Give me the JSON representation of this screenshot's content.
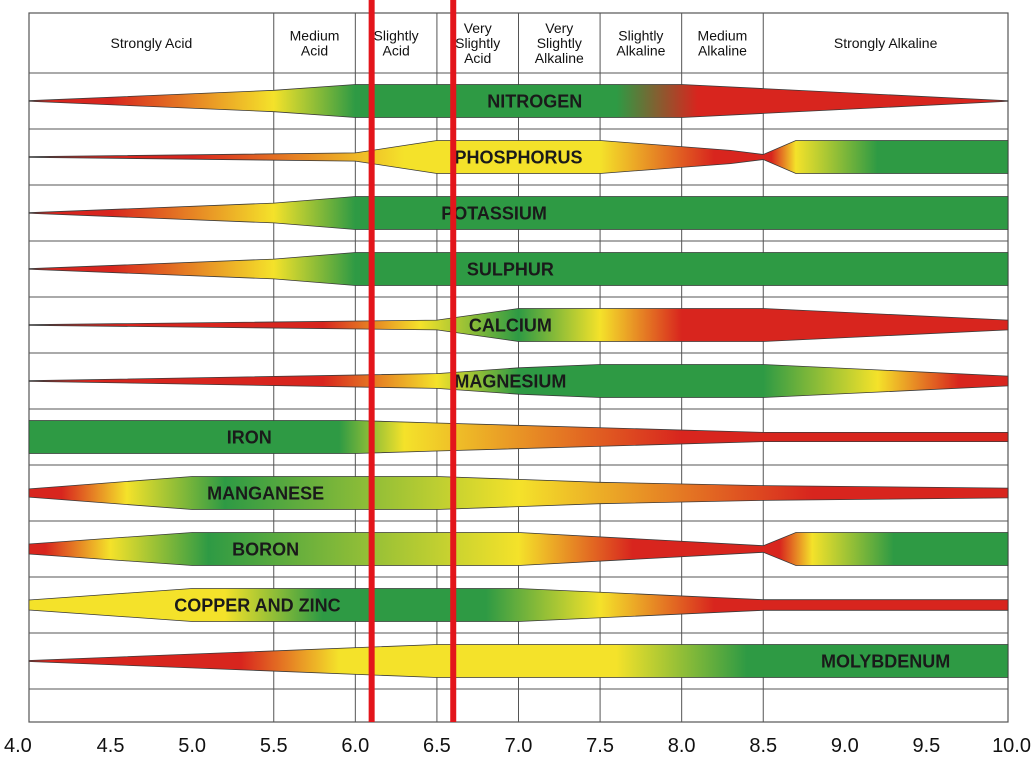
{
  "chart_data": {
    "type": "band",
    "x_ticks": [
      "4.0",
      "4.5",
      "5.0",
      "5.5",
      "6.0",
      "6.5",
      "7.0",
      "7.5",
      "8.0",
      "8.5",
      "9.0",
      "9.5",
      "10.0"
    ],
    "xlim": [
      4.0,
      10.0
    ],
    "header_categories": [
      {
        "label": [
          "Strongly Acid"
        ],
        "range": [
          4.0,
          5.5
        ]
      },
      {
        "label": [
          "Medium",
          "Acid"
        ],
        "range": [
          5.5,
          6.0
        ]
      },
      {
        "label": [
          "Slightly",
          "Acid"
        ],
        "range": [
          6.0,
          6.5
        ]
      },
      {
        "label": [
          "Very",
          "Slightly",
          "Acid"
        ],
        "range": [
          6.5,
          7.0
        ]
      },
      {
        "label": [
          "Very",
          "Slightly",
          "Alkaline"
        ],
        "range": [
          7.0,
          7.5
        ]
      },
      {
        "label": [
          "Slightly",
          "Alkaline"
        ],
        "range": [
          7.5,
          8.0
        ]
      },
      {
        "label": [
          "Medium",
          "Alkaline"
        ],
        "range": [
          8.0,
          8.5
        ]
      },
      {
        "label": [
          "Strongly Alkaline"
        ],
        "range": [
          8.5,
          10.0
        ]
      }
    ],
    "highlight_lines": [
      6.1,
      6.6
    ],
    "colors": {
      "good": "#2e9a44",
      "moderate": "#f4e22a",
      "poor": "#d8251e",
      "highlight": "#e3151b",
      "grid": "#555555"
    },
    "availability_scale": "relative band thickness 0–1",
    "series": [
      {
        "name": "NITROGEN",
        "label_x": 7.1,
        "profile": [
          [
            4.0,
            0.02
          ],
          [
            5.5,
            0.65
          ],
          [
            6.0,
            1
          ],
          [
            8.0,
            1
          ],
          [
            8.5,
            0.75
          ],
          [
            10.0,
            0.02
          ]
        ],
        "colors": [
          [
            4.5,
            "poor"
          ],
          [
            5.5,
            "moderate"
          ],
          [
            6.0,
            "good"
          ],
          [
            7.6,
            "good"
          ],
          [
            8.1,
            "poor"
          ]
        ]
      },
      {
        "name": "PHOSPHORUS",
        "label_x": 7.0,
        "profile": [
          [
            4.0,
            0.02
          ],
          [
            6.0,
            0.25
          ],
          [
            6.5,
            1
          ],
          [
            7.5,
            1
          ],
          [
            8.3,
            0.4
          ],
          [
            8.5,
            0.15
          ],
          [
            8.7,
            1
          ],
          [
            10.0,
            1
          ]
        ],
        "colors": [
          [
            5.0,
            "poor"
          ],
          [
            6.3,
            "moderate"
          ],
          [
            7.5,
            "moderate"
          ],
          [
            8.2,
            "poor"
          ],
          [
            8.55,
            "poor"
          ],
          [
            8.7,
            "moderate"
          ],
          [
            9.2,
            "good"
          ]
        ]
      },
      {
        "name": "POTASSIUM",
        "label_x": 6.85,
        "profile": [
          [
            4.0,
            0.02
          ],
          [
            5.5,
            0.6
          ],
          [
            6.0,
            1
          ],
          [
            10.0,
            1
          ]
        ],
        "colors": [
          [
            4.5,
            "poor"
          ],
          [
            5.5,
            "moderate"
          ],
          [
            6.0,
            "good"
          ]
        ]
      },
      {
        "name": "SULPHUR",
        "label_x": 6.95,
        "profile": [
          [
            4.0,
            0.02
          ],
          [
            5.5,
            0.6
          ],
          [
            6.0,
            1
          ],
          [
            10.0,
            1
          ]
        ],
        "colors": [
          [
            4.5,
            "poor"
          ],
          [
            5.5,
            "moderate"
          ],
          [
            6.0,
            "good"
          ]
        ]
      },
      {
        "name": "CALCIUM",
        "label_x": 6.95,
        "profile": [
          [
            4.0,
            0.02
          ],
          [
            6.5,
            0.3
          ],
          [
            7.0,
            1
          ],
          [
            8.5,
            1
          ],
          [
            10.0,
            0.3
          ]
        ],
        "colors": [
          [
            5.8,
            "poor"
          ],
          [
            6.4,
            "moderate"
          ],
          [
            7.0,
            "good"
          ],
          [
            7.5,
            "moderate"
          ],
          [
            8.0,
            "poor"
          ]
        ]
      },
      {
        "name": "MAGNESIUM",
        "label_x": 6.95,
        "profile": [
          [
            4.0,
            0.02
          ],
          [
            6.5,
            0.45
          ],
          [
            7.0,
            0.8
          ],
          [
            7.5,
            1
          ],
          [
            8.5,
            1
          ],
          [
            10.0,
            0.3
          ]
        ],
        "colors": [
          [
            5.8,
            "poor"
          ],
          [
            6.5,
            "moderate"
          ],
          [
            7.0,
            "good"
          ],
          [
            8.5,
            "good"
          ],
          [
            9.2,
            "moderate"
          ],
          [
            9.7,
            "poor"
          ]
        ]
      },
      {
        "name": "IRON",
        "label_x": 5.35,
        "profile": [
          [
            4.0,
            1
          ],
          [
            6.0,
            1
          ],
          [
            6.5,
            0.85
          ],
          [
            8.5,
            0.28
          ],
          [
            10.0,
            0.28
          ]
        ],
        "colors": [
          [
            5.9,
            "good"
          ],
          [
            6.3,
            "moderate"
          ],
          [
            8.0,
            "poor"
          ]
        ]
      },
      {
        "name": "MANGANESE",
        "label_x": 5.45,
        "profile": [
          [
            4.0,
            0.25
          ],
          [
            5.0,
            1
          ],
          [
            6.5,
            1
          ],
          [
            7.5,
            0.65
          ],
          [
            8.5,
            0.45
          ],
          [
            10.0,
            0.3
          ]
        ],
        "colors": [
          [
            4.2,
            "poor"
          ],
          [
            4.6,
            "moderate"
          ],
          [
            5.2,
            "good"
          ],
          [
            7.0,
            "moderate"
          ],
          [
            8.8,
            "poor"
          ]
        ]
      },
      {
        "name": "BORON",
        "label_x": 5.45,
        "profile": [
          [
            4.0,
            0.3
          ],
          [
            5.0,
            1
          ],
          [
            7.0,
            1
          ],
          [
            8.5,
            0.2
          ],
          [
            8.7,
            1
          ],
          [
            10.0,
            1
          ]
        ],
        "colors": [
          [
            4.1,
            "poor"
          ],
          [
            4.5,
            "moderate"
          ],
          [
            5.1,
            "good"
          ],
          [
            7.0,
            "moderate"
          ],
          [
            7.7,
            "poor"
          ],
          [
            8.6,
            "poor"
          ],
          [
            8.8,
            "moderate"
          ],
          [
            9.3,
            "good"
          ]
        ]
      },
      {
        "name": "COPPER AND ZINC",
        "label_x": 5.4,
        "profile": [
          [
            4.0,
            0.3
          ],
          [
            5.0,
            1
          ],
          [
            7.0,
            1
          ],
          [
            8.5,
            0.32
          ],
          [
            10.0,
            0.32
          ]
        ],
        "colors": [
          [
            4.2,
            "moderate"
          ],
          [
            5.2,
            "moderate"
          ],
          [
            5.8,
            "good"
          ],
          [
            6.8,
            "good"
          ],
          [
            7.5,
            "moderate"
          ],
          [
            8.2,
            "poor"
          ]
        ]
      },
      {
        "name": "MOLYBDENUM",
        "label_x": 9.25,
        "profile": [
          [
            4.0,
            0.03
          ],
          [
            6.5,
            1
          ],
          [
            10.0,
            1
          ]
        ],
        "colors": [
          [
            5.3,
            "poor"
          ],
          [
            5.9,
            "moderate"
          ],
          [
            7.6,
            "moderate"
          ],
          [
            8.4,
            "good"
          ]
        ]
      }
    ]
  }
}
